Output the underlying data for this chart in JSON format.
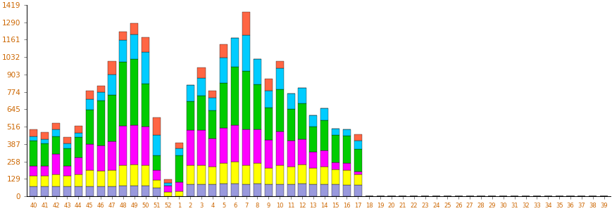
{
  "categories": [
    "40",
    "41",
    "42",
    "43",
    "44",
    "45",
    "46",
    "47",
    "48",
    "49",
    "50",
    "51",
    "52",
    "1",
    "2",
    "3",
    "4",
    "5",
    "6",
    "7",
    "8",
    "9",
    "10",
    "11",
    "12",
    "13",
    "14",
    "15",
    "16",
    "17",
    "18",
    "19",
    "20",
    "21",
    "22",
    "23",
    "24",
    "25",
    "26",
    "27",
    "28",
    "29",
    "30",
    "31",
    "32",
    "33",
    "34",
    "35",
    "36",
    "37",
    "38",
    "39"
  ],
  "blue": [
    75,
    75,
    75,
    75,
    75,
    75,
    75,
    75,
    80,
    80,
    80,
    65,
    0,
    0,
    90,
    90,
    90,
    95,
    95,
    90,
    95,
    90,
    90,
    90,
    95,
    90,
    90,
    90,
    85,
    85,
    0,
    0,
    0,
    0,
    0,
    0,
    0,
    0,
    0,
    0,
    0,
    0,
    0,
    0,
    0,
    0,
    0,
    0,
    0,
    0,
    0,
    0
  ],
  "yellow": [
    75,
    75,
    90,
    75,
    85,
    120,
    115,
    120,
    150,
    155,
    150,
    55,
    30,
    35,
    140,
    140,
    130,
    150,
    160,
    140,
    150,
    120,
    140,
    130,
    140,
    120,
    130,
    110,
    110,
    80,
    0,
    0,
    0,
    0,
    0,
    0,
    0,
    0,
    0,
    0,
    0,
    0,
    0,
    0,
    0,
    0,
    0,
    0,
    0,
    0,
    0,
    0
  ],
  "magenta": [
    75,
    75,
    150,
    75,
    125,
    190,
    185,
    210,
    290,
    290,
    285,
    75,
    50,
    70,
    260,
    260,
    210,
    260,
    270,
    265,
    250,
    210,
    250,
    190,
    190,
    120,
    120,
    50,
    50,
    20,
    0,
    0,
    0,
    0,
    0,
    0,
    0,
    0,
    0,
    0,
    0,
    0,
    0,
    0,
    0,
    0,
    0,
    0,
    0,
    0,
    0,
    0
  ],
  "green": [
    185,
    165,
    130,
    130,
    155,
    255,
    335,
    345,
    475,
    490,
    320,
    110,
    0,
    200,
    215,
    255,
    205,
    335,
    435,
    435,
    335,
    235,
    315,
    235,
    265,
    185,
    225,
    205,
    205,
    165,
    0,
    0,
    0,
    0,
    0,
    0,
    0,
    0,
    0,
    0,
    0,
    0,
    0,
    0,
    0,
    0,
    0,
    0,
    0,
    0,
    0,
    0
  ],
  "cyan": [
    35,
    35,
    50,
    35,
    30,
    80,
    60,
    150,
    165,
    185,
    235,
    150,
    20,
    50,
    120,
    130,
    95,
    185,
    215,
    265,
    185,
    125,
    155,
    115,
    115,
    85,
    85,
    45,
    45,
    60,
    0,
    0,
    0,
    0,
    0,
    0,
    0,
    0,
    0,
    0,
    0,
    0,
    0,
    0,
    0,
    0,
    0,
    0,
    0,
    0,
    0,
    0
  ],
  "orange": [
    50,
    50,
    50,
    50,
    50,
    60,
    50,
    100,
    60,
    80,
    110,
    130,
    25,
    40,
    0,
    80,
    50,
    100,
    0,
    170,
    0,
    90,
    50,
    0,
    0,
    0,
    0,
    0,
    0,
    50,
    0,
    0,
    0,
    0,
    0,
    0,
    0,
    0,
    0,
    0,
    0,
    0,
    0,
    0,
    0,
    0,
    0,
    0,
    0,
    0,
    0,
    0
  ],
  "colors": {
    "blue": "#9999dd",
    "yellow": "#ffff00",
    "magenta": "#ff00ff",
    "green": "#00cc00",
    "cyan": "#00ccff",
    "orange": "#ff6644"
  },
  "yticks": [
    0,
    129,
    258,
    387,
    516,
    645,
    774,
    903,
    1032,
    1161,
    1290,
    1419
  ],
  "ylim": [
    0,
    1419
  ],
  "background_color": "#ffffff",
  "tick_color": "#cc6600",
  "bar_width": 0.7
}
